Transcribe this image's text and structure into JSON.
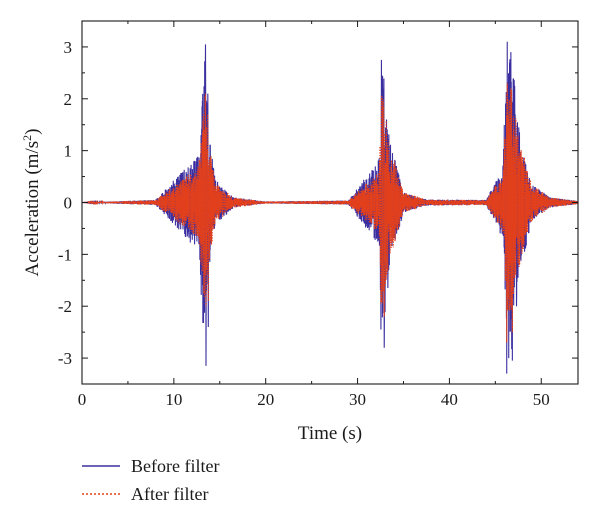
{
  "chart_data": {
    "type": "line",
    "title": "",
    "xlabel": "Time (s)",
    "ylabel_main": "Acceleration (m/s",
    "ylabel_sup": "2",
    "ylabel_tail": ")",
    "xlim": [
      0,
      54
    ],
    "ylim": [
      -3.5,
      3.5
    ],
    "x_ticks": [
      0,
      10,
      20,
      30,
      40,
      50
    ],
    "y_ticks": [
      -3,
      -2,
      -1,
      0,
      1,
      2,
      3
    ],
    "x_tick_labels": [
      "0",
      "10",
      "20",
      "30",
      "40",
      "50"
    ],
    "y_tick_labels": [
      "-3",
      "-2",
      "-1",
      "0",
      "1",
      "2",
      "3"
    ],
    "grid": false,
    "legend_position": "bottom-left, below plot",
    "series": [
      {
        "name": "Before filter",
        "color": "#3b2fa0",
        "style": "solid",
        "envelope": [
          [
            0,
            0
          ],
          [
            8.0,
            0.05
          ],
          [
            12.7,
            0.95
          ],
          [
            13.4,
            3.05
          ],
          [
            13.7,
            1.45
          ],
          [
            14.5,
            0.45
          ],
          [
            16.5,
            0.1
          ],
          [
            20.0,
            0.02
          ],
          [
            29.0,
            0.04
          ],
          [
            32.3,
            0.85
          ],
          [
            32.7,
            2.75
          ],
          [
            33.5,
            1.2
          ],
          [
            34.0,
            0.9
          ],
          [
            35.0,
            0.2
          ],
          [
            37.5,
            0.06
          ],
          [
            44.0,
            0.05
          ],
          [
            45.8,
            0.7
          ],
          [
            46.3,
            3.1
          ],
          [
            46.8,
            2.85
          ],
          [
            47.5,
            1.5
          ],
          [
            49.0,
            0.35
          ],
          [
            51.0,
            0.1
          ],
          [
            54.0,
            0.03
          ]
        ],
        "peaks": [
          [
            13.05,
            0.95
          ],
          [
            13.0,
            -0.6
          ],
          [
            13.2,
            -1.4
          ],
          [
            13.3,
            1.15
          ],
          [
            13.45,
            3.05
          ],
          [
            13.5,
            -3.15
          ],
          [
            13.7,
            2.1
          ],
          [
            13.75,
            -2.4
          ],
          [
            32.35,
            0.85
          ],
          [
            32.5,
            -0.95
          ],
          [
            32.6,
            2.75
          ],
          [
            32.55,
            -2.45
          ],
          [
            32.85,
            2.05
          ],
          [
            32.9,
            -2.8
          ],
          [
            33.15,
            1.6
          ],
          [
            33.3,
            -1.65
          ],
          [
            46.05,
            0.65
          ],
          [
            46.15,
            -1.2
          ],
          [
            46.3,
            3.1
          ],
          [
            46.25,
            -3.3
          ],
          [
            46.7,
            2.9
          ],
          [
            46.85,
            -3.05
          ],
          [
            47.1,
            2.25
          ],
          [
            47.3,
            -2.0
          ]
        ]
      },
      {
        "name": "After filter",
        "color": "#e2401c",
        "style": "dotted",
        "envelope": [
          [
            0,
            0
          ],
          [
            8.0,
            0.05
          ],
          [
            12.7,
            0.7
          ],
          [
            13.4,
            2.1
          ],
          [
            13.7,
            1.3
          ],
          [
            14.5,
            0.4
          ],
          [
            16.5,
            0.1
          ],
          [
            20.0,
            0.02
          ],
          [
            29.0,
            0.04
          ],
          [
            32.3,
            0.6
          ],
          [
            32.7,
            2.1
          ],
          [
            33.5,
            1.1
          ],
          [
            34.0,
            0.85
          ],
          [
            35.0,
            0.2
          ],
          [
            37.5,
            0.06
          ],
          [
            44.0,
            0.05
          ],
          [
            45.8,
            0.55
          ],
          [
            46.3,
            2.3
          ],
          [
            46.8,
            2.2
          ],
          [
            47.5,
            1.3
          ],
          [
            49.0,
            0.35
          ],
          [
            51.0,
            0.1
          ],
          [
            54.0,
            0.03
          ]
        ],
        "peaks": [
          [
            13.45,
            2.1
          ],
          [
            13.5,
            -2.0
          ],
          [
            13.7,
            1.7
          ],
          [
            13.75,
            -1.9
          ],
          [
            32.6,
            2.05
          ],
          [
            32.55,
            -1.95
          ],
          [
            32.85,
            1.85
          ],
          [
            32.9,
            -2.2
          ],
          [
            46.3,
            2.3
          ],
          [
            46.25,
            -2.7
          ],
          [
            46.7,
            2.2
          ],
          [
            46.85,
            -2.5
          ]
        ]
      }
    ]
  }
}
